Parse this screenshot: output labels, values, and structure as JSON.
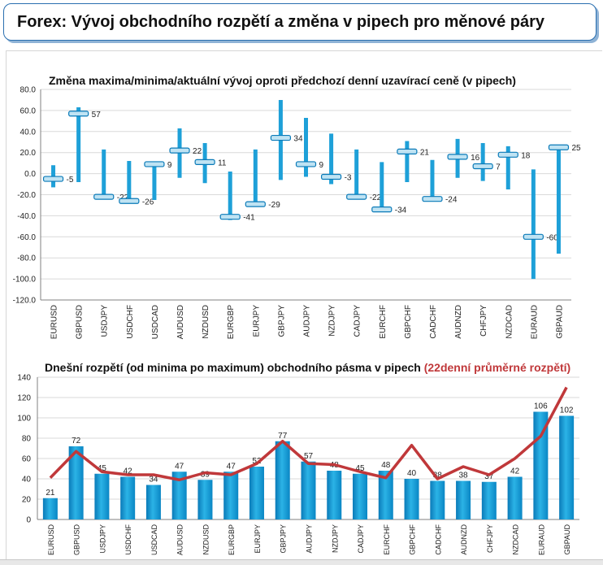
{
  "header": {
    "title": "Forex: Vývoj obchodního rozpětí a změna v pipech pro měnové páry"
  },
  "colors": {
    "bar": "#1ea0d8",
    "bar_dark": "#0a7ab8",
    "line": "#c0383a",
    "axis": "#808080",
    "grid": "#d9d9d9",
    "marker": "#bfe3f3"
  },
  "chart_data": [
    {
      "type": "candlestick",
      "title": "Změna maxima/minima/aktuální vývoj oproti předchozí denní uzavírací ceně (v pipech)",
      "categories": [
        "EURUSD",
        "GBPUSD",
        "USDJPY",
        "USDCHF",
        "USDCAD",
        "AUDUSD",
        "NZDUSD",
        "EURGBP",
        "EURJPY",
        "GBPJPY",
        "AUDJPY",
        "NZDJPY",
        "CADJPY",
        "EURCHF",
        "GBPCHF",
        "CADCHF",
        "AUDNZD",
        "CHFJPY",
        "NZDCAD",
        "EURAUD",
        "GBPAUD"
      ],
      "high": [
        8,
        63,
        23,
        12,
        10,
        43,
        29,
        2,
        23,
        70,
        53,
        38,
        23,
        11,
        31,
        13,
        33,
        29,
        26,
        4,
        26
      ],
      "low": [
        -13,
        -8,
        -23,
        -27,
        -25,
        -4,
        -9,
        -44,
        -31,
        -6,
        -3,
        -10,
        -24,
        -36,
        -8,
        -25,
        -4,
        -7,
        -15,
        -100,
        -76
      ],
      "current": [
        -5,
        57,
        -22,
        -26,
        9,
        22,
        11,
        -41,
        -29,
        34,
        9,
        -3,
        -22,
        -34,
        21,
        -24,
        16,
        7,
        18,
        -60,
        25
      ],
      "y_ticks": [
        "80.0",
        "60.0",
        "40.0",
        "20.0",
        "0.0",
        "-20.0",
        "-40.0",
        "-60.0",
        "-80.0",
        "-100.0",
        "-120.0"
      ],
      "ylim": [
        -120,
        80
      ],
      "grid": true
    },
    {
      "type": "bar+line",
      "title": "Dnešní rozpětí (od minima po maximum) obchodního pásma v pipech",
      "title_accent": "(22denní průměrné rozpětí)",
      "categories": [
        "EURUSD",
        "GBPUSD",
        "USDJPY",
        "USDCHF",
        "USDCAD",
        "AUDUSD",
        "NZDUSD",
        "EURGBP",
        "EURJPY",
        "GBPJPY",
        "AUDJPY",
        "NZDJPY",
        "CADJPY",
        "EURCHF",
        "GBPCHF",
        "CADCHF",
        "AUDNZD",
        "CHFJPY",
        "NZDCAD",
        "EURAUD",
        "GBPAUD"
      ],
      "bar_values": [
        21,
        72,
        45,
        42,
        34,
        47,
        39,
        47,
        52,
        77,
        57,
        48,
        45,
        48,
        40,
        38,
        38,
        37,
        42,
        106,
        102
      ],
      "line_values": [
        41,
        67,
        47,
        44,
        44,
        39,
        46,
        44,
        55,
        77,
        55,
        54,
        47,
        41,
        73,
        40,
        52,
        44,
        60,
        82,
        130
      ],
      "y_ticks": [
        "140",
        "120",
        "100",
        "80",
        "60",
        "40",
        "20",
        "0"
      ],
      "ylim": [
        0,
        140
      ],
      "grid": true
    }
  ]
}
